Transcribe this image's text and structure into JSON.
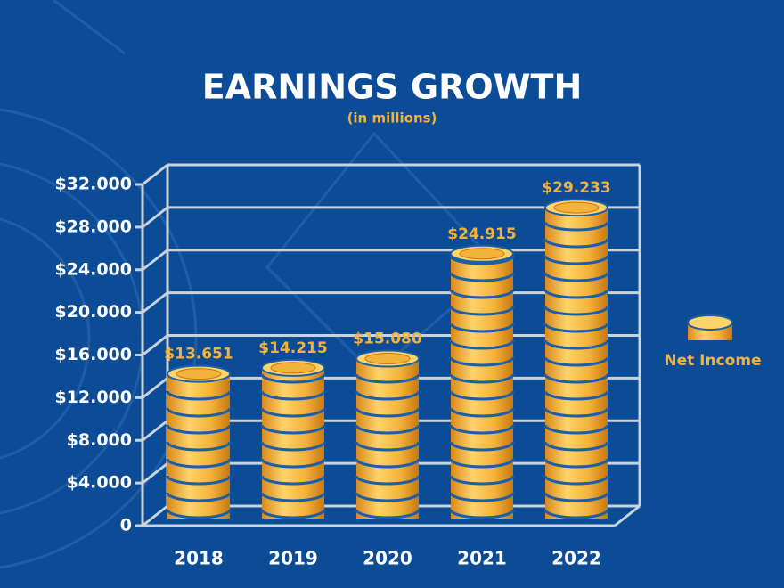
{
  "chart_data": {
    "type": "bar",
    "title": "EARNINGS GROWTH",
    "subtitle": "(in millions)",
    "categories": [
      "2018",
      "2019",
      "2020",
      "2021",
      "2022"
    ],
    "series": [
      {
        "name": "Net Income",
        "color": "#f3b23a",
        "values": [
          13651,
          14215,
          15080,
          24915,
          29233
        ],
        "value_labels": [
          "$13.651",
          "$14.215",
          "$15.080",
          "$24.915",
          "$29.233"
        ]
      }
    ],
    "ylim": [
      0,
      32000
    ],
    "yticks": [
      0,
      {
        "value": 4000,
        "label": "$4.000"
      },
      {
        "value": 8000,
        "label": "$8.000"
      },
      {
        "value": 12000,
        "label": "$12.000"
      },
      {
        "value": 16000,
        "label": "$16.000"
      },
      {
        "value": 20000,
        "label": "$20.000"
      },
      {
        "value": 24000,
        "label": "$24.000"
      },
      {
        "value": 28000,
        "label": "$28.000"
      },
      {
        "value": 32000,
        "label": "$32.000"
      }
    ],
    "grid": true,
    "legend": "right"
  }
}
